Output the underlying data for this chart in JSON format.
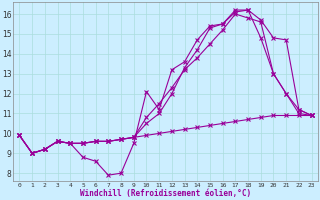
{
  "xlabel": "Windchill (Refroidissement éolien,°C)",
  "bg_color": "#cceeff",
  "line_color": "#990099",
  "grid_color": "#aadddd",
  "xlim": [
    -0.5,
    23.5
  ],
  "ylim": [
    7.6,
    16.6
  ],
  "xticks": [
    0,
    1,
    2,
    3,
    4,
    5,
    6,
    7,
    8,
    9,
    10,
    11,
    12,
    13,
    14,
    15,
    16,
    17,
    18,
    19,
    20,
    21,
    22,
    23
  ],
  "yticks": [
    8,
    9,
    10,
    11,
    12,
    13,
    14,
    15,
    16
  ],
  "series": [
    [
      9.9,
      9.0,
      9.2,
      9.6,
      9.5,
      8.8,
      8.6,
      7.9,
      8.0,
      9.5,
      12.1,
      11.2,
      13.2,
      13.6,
      14.7,
      15.4,
      15.5,
      16.2,
      16.2,
      14.8,
      13.0,
      12.0,
      11.0,
      10.9
    ],
    [
      9.9,
      9.0,
      9.2,
      9.6,
      9.5,
      9.5,
      9.6,
      9.6,
      9.7,
      9.8,
      9.9,
      10.0,
      10.1,
      10.2,
      10.3,
      10.4,
      10.5,
      10.6,
      10.7,
      10.8,
      10.9,
      10.9,
      10.9,
      10.9
    ],
    [
      9.9,
      9.0,
      9.2,
      9.6,
      9.5,
      9.5,
      9.6,
      9.6,
      9.7,
      9.8,
      10.8,
      11.5,
      12.3,
      13.2,
      13.8,
      14.5,
      15.2,
      16.0,
      15.8,
      15.6,
      13.0,
      12.0,
      11.2,
      10.9
    ],
    [
      9.9,
      9.0,
      9.2,
      9.6,
      9.5,
      9.5,
      9.6,
      9.6,
      9.7,
      9.8,
      10.5,
      11.0,
      12.0,
      13.3,
      14.2,
      15.3,
      15.5,
      16.1,
      16.2,
      15.7,
      14.8,
      14.7,
      11.2,
      10.9
    ]
  ]
}
